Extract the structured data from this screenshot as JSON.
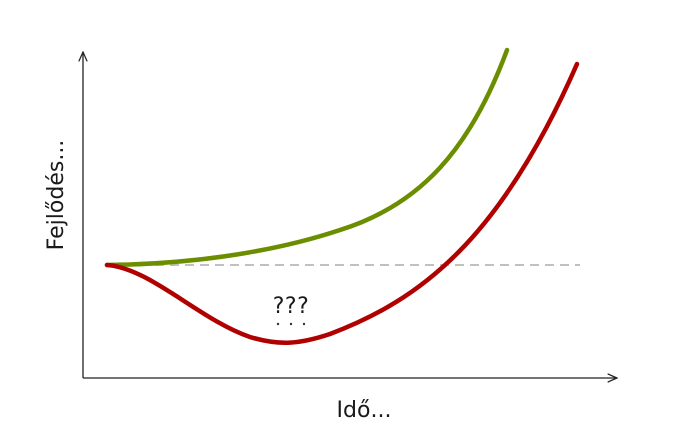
{
  "diagram": {
    "x_axis_label": "Idő...",
    "y_axis_label": "Fejlődés...",
    "annotation": "???",
    "colors": {
      "axis": "#222222",
      "growth_curve": "#6b8e00",
      "dip_curve": "#b00000",
      "baseline": "#c0c0c0"
    }
  }
}
